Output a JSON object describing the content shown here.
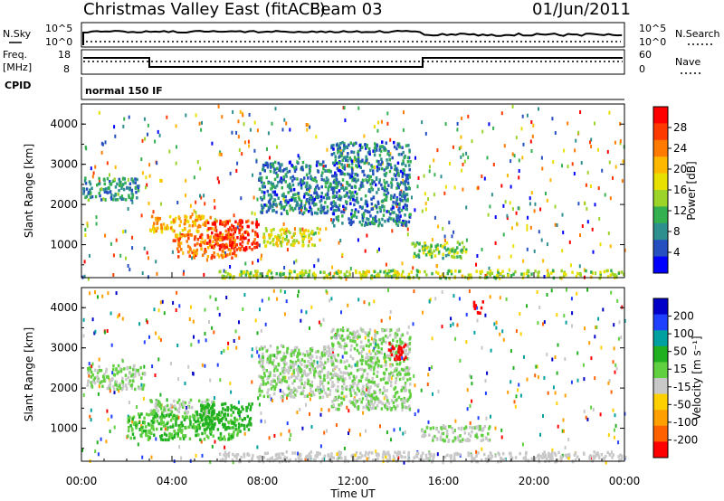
{
  "header": {
    "title": "Christmas Valley East (fitACF)",
    "beam": "Beam 03",
    "date": "01/Jun/2011"
  },
  "top_panels": {
    "nsky_label": "N.Sky",
    "nsearch_label": "N.Search",
    "count_ticks": [
      "10^5",
      "10^0"
    ],
    "freq_label_line1": "Freq.",
    "freq_label_line2": "[MHz]",
    "freq_ticks": [
      "18",
      "8"
    ],
    "nave_label": "Nave",
    "nave_ticks": [
      "60",
      "0"
    ],
    "cpid_label": "CPID",
    "cpid_text": "normal 150 IF"
  },
  "axes": {
    "ylabel": "Slant Range [km]",
    "xlabel": "Time UT",
    "x_ticks": [
      "00:00",
      "04:00",
      "08:00",
      "12:00",
      "16:00",
      "20:00",
      "00:00"
    ],
    "y_ticks": [
      "4000",
      "3000",
      "2000",
      "1000"
    ]
  },
  "power_colorbar": {
    "label": "Power [dB]",
    "ticks": [
      "28",
      "24",
      "20",
      "16",
      "12",
      "8",
      "4"
    ],
    "colors": [
      "#ff0000",
      "#ff3a00",
      "#ff7a00",
      "#ffb800",
      "#e8e000",
      "#9cd42a",
      "#34b050",
      "#2e8f8f",
      "#2650c0",
      "#0000ff"
    ]
  },
  "velocity_colorbar": {
    "label": "Velocity [m s⁻¹]",
    "ticks": [
      "200",
      "100",
      "50",
      "15",
      "-15",
      "-50",
      "-100",
      "-200"
    ],
    "colors": [
      "#0000c8",
      "#2040ff",
      "#00a0a0",
      "#20b020",
      "#60d040",
      "#c8c8c8",
      "#ffd000",
      "#ffa000",
      "#ff6000",
      "#ff0000"
    ]
  },
  "chart_data": [
    {
      "type": "heatmap",
      "name": "power",
      "x_range_hours": [
        0,
        24
      ],
      "y_range_km": [
        180,
        4500
      ],
      "xlabel": "Time UT",
      "ylabel": "Slant Range [km]",
      "colorbar": {
        "label": "Power [dB]",
        "range": [
          0,
          30
        ]
      },
      "regions": [
        {
          "t0": 0.0,
          "t1": 2.5,
          "r0": 2150,
          "r1": 2700,
          "value": 8
        },
        {
          "t0": 3.0,
          "t1": 5.8,
          "r0": 1350,
          "r1": 1750,
          "value": 20
        },
        {
          "t0": 4.0,
          "t1": 6.8,
          "r0": 700,
          "r1": 1300,
          "value": 24
        },
        {
          "t0": 5.5,
          "t1": 7.8,
          "r0": 900,
          "r1": 1650,
          "value": 28
        },
        {
          "t0": 7.8,
          "t1": 11.0,
          "r0": 1800,
          "r1": 3100,
          "value": 6
        },
        {
          "t0": 8.0,
          "t1": 10.5,
          "r0": 1000,
          "r1": 1450,
          "value": 16
        },
        {
          "t0": 11.0,
          "t1": 14.5,
          "r0": 1500,
          "r1": 3600,
          "value": 6
        },
        {
          "t0": 14.5,
          "t1": 17.0,
          "r0": 700,
          "r1": 1100,
          "value": 12
        },
        {
          "t0": 6.0,
          "t1": 24.0,
          "r0": 200,
          "r1": 400,
          "value": 14
        }
      ]
    },
    {
      "type": "heatmap",
      "name": "velocity",
      "x_range_hours": [
        0,
        24
      ],
      "y_range_km": [
        180,
        4500
      ],
      "xlabel": "Time UT",
      "ylabel": "Slant Range [km]",
      "colorbar": {
        "label": "Velocity [m s⁻¹]",
        "range": [
          -200,
          200
        ]
      },
      "regions": [
        {
          "t0": 0.2,
          "t1": 2.8,
          "r0": 2000,
          "r1": 2600,
          "value": 0
        },
        {
          "t0": 3.0,
          "t1": 5.8,
          "r0": 1300,
          "r1": 1750,
          "value": 0
        },
        {
          "t0": 2.0,
          "t1": 7.0,
          "r0": 750,
          "r1": 1400,
          "value": 40
        },
        {
          "t0": 5.0,
          "t1": 7.5,
          "r0": 1000,
          "r1": 1650,
          "value": 60
        },
        {
          "t0": 7.8,
          "t1": 11.0,
          "r0": 1800,
          "r1": 3100,
          "value": 0
        },
        {
          "t0": 11.0,
          "t1": 14.5,
          "r0": 1500,
          "r1": 3500,
          "value": 0
        },
        {
          "t0": 13.5,
          "t1": 14.3,
          "r0": 2750,
          "r1": 3150,
          "value": -200
        },
        {
          "t0": 17.3,
          "t1": 17.7,
          "r0": 3900,
          "r1": 4200,
          "value": -200
        },
        {
          "t0": 15.0,
          "t1": 18.0,
          "r0": 700,
          "r1": 1100,
          "value": 0
        },
        {
          "t0": 6.0,
          "t1": 24.0,
          "r0": 200,
          "r1": 450,
          "value": -30
        }
      ]
    }
  ]
}
